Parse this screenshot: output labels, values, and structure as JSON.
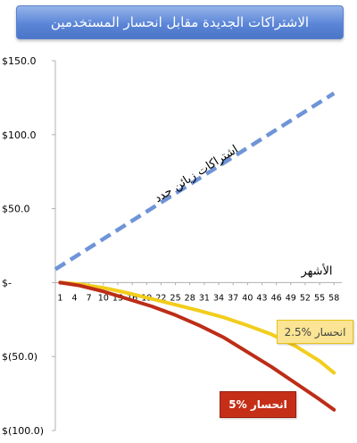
{
  "chart_data": {
    "type": "line",
    "title": "الاشتراكات الجديدة مقابل انحسار المستخدمين",
    "xlabel": "الأشهر",
    "ylabel": "",
    "categories": [
      "1",
      "4",
      "7",
      "10",
      "13",
      "16",
      "19",
      "22",
      "25",
      "28",
      "31",
      "34",
      "37",
      "40",
      "43",
      "46",
      "49",
      "52",
      "55",
      "58"
    ],
    "x": [
      1,
      4,
      7,
      10,
      13,
      16,
      19,
      22,
      25,
      28,
      31,
      34,
      37,
      40,
      43,
      46,
      49,
      52,
      55,
      58
    ],
    "xlim": [
      0,
      60
    ],
    "ylim": [
      -100,
      150
    ],
    "yticks": [
      150,
      100,
      50,
      0,
      -50,
      -100
    ],
    "ytick_labels": [
      "$150.0",
      "$100.0",
      "$50.0",
      "$-",
      "$(50.0)",
      "$(100.0)"
    ],
    "grid": false,
    "series": [
      {
        "name": "اشتراكات زبائن جدد",
        "color": "#6f94d8",
        "style": "dashed",
        "x": [
          0,
          58
        ],
        "values": [
          9,
          128
        ]
      },
      {
        "name": "انحسار 2.5%",
        "color": "#f2cd1c",
        "style": "solid",
        "x": [
          1,
          5,
          10,
          15,
          20,
          25,
          30,
          35,
          40,
          45,
          50,
          55,
          58
        ],
        "values": [
          0,
          -1,
          -3.5,
          -7,
          -11,
          -15,
          -19,
          -23.5,
          -29,
          -35,
          -43,
          -53,
          -61
        ]
      },
      {
        "name": "انحسار 5%",
        "color": "#bd2d17",
        "style": "solid",
        "x": [
          1,
          5,
          10,
          15,
          20,
          25,
          30,
          35,
          40,
          45,
          50,
          55,
          58
        ],
        "values": [
          0,
          -2,
          -6,
          -11,
          -16,
          -22,
          -29,
          -37,
          -47,
          -57,
          -68,
          -79,
          -86
        ]
      }
    ],
    "annotations": [
      {
        "text": "اشتراكات زبائن جدد",
        "style": "rotated-along-line"
      },
      {
        "text": "انحسار %2.5",
        "bg": "#fbe493",
        "border": "#e8c31a",
        "color": "#444444"
      },
      {
        "text": "انحسار %5",
        "bg": "#c52f18",
        "border": "#96220f",
        "color": "#ffffff"
      }
    ]
  }
}
